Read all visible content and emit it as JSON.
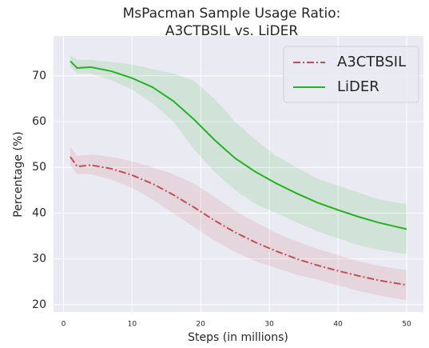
{
  "chart_data": {
    "type": "line",
    "title": [
      "MsPacman Sample Usage Ratio:",
      "A3CTBSIL vs. LiDER"
    ],
    "xlabel": "Steps (in millions)",
    "ylabel": "Percentage (%)",
    "x": [
      1,
      2,
      4,
      7,
      10,
      13,
      16,
      19,
      22,
      25,
      28,
      31,
      34,
      37,
      40,
      43,
      46,
      50
    ],
    "series": [
      {
        "name": "A3CTBSIL",
        "color": "#c44e52",
        "dash": "dashdot",
        "values": [
          52.3,
          50.2,
          50.5,
          49.7,
          48.3,
          46.4,
          44.0,
          41.3,
          38.4,
          35.8,
          33.6,
          31.7,
          30.0,
          28.6,
          27.4,
          26.3,
          25.3,
          24.3
        ],
        "upper": [
          54.5,
          52.5,
          52.8,
          52.3,
          51.3,
          50,
          48.5,
          46.5,
          43.5,
          40.5,
          38,
          35.7,
          33.8,
          32.2,
          30.8,
          29.5,
          28.5,
          27.5
        ],
        "lower": [
          50.5,
          48.5,
          48.5,
          47.3,
          45.5,
          43,
          40,
          37,
          34,
          31.5,
          29.5,
          28,
          26.5,
          25.5,
          24.2,
          23,
          22,
          21
        ]
      },
      {
        "name": "LiDER",
        "color": "#22b222",
        "dash": "solid",
        "values": [
          73.2,
          71.7,
          71.9,
          71.0,
          69.5,
          67.5,
          64.5,
          60.5,
          56,
          52,
          49,
          46.5,
          44.3,
          42.3,
          40.7,
          39.2,
          37.9,
          36.5
        ],
        "upper": [
          74.5,
          73.5,
          73.5,
          73,
          72.5,
          71.5,
          70.5,
          69,
          65,
          60,
          56,
          52.5,
          50,
          47.5,
          46,
          44.5,
          43,
          42
        ],
        "lower": [
          72,
          70.5,
          70.5,
          69,
          67,
          64,
          60,
          54,
          49,
          45,
          42,
          40,
          38,
          36,
          34.5,
          33,
          32,
          31
        ]
      }
    ],
    "xlim": [
      -1.45,
      52.45
    ],
    "xticks": [
      0,
      10,
      20,
      30,
      40,
      50
    ],
    "ylim": [
      18.4,
      78.7
    ],
    "yticks": [
      20,
      30,
      40,
      50,
      60,
      70
    ],
    "grid": true,
    "legend": "upper right"
  }
}
